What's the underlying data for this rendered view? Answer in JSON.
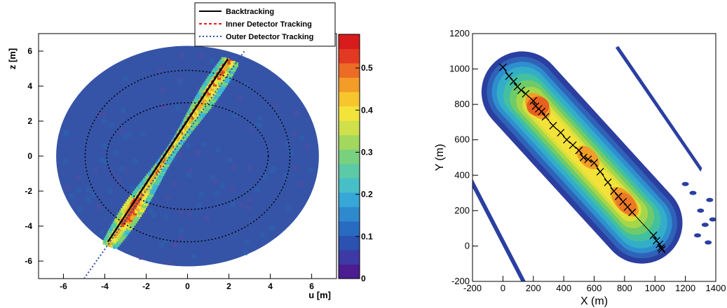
{
  "chart_data": [
    {
      "type": "heatmap",
      "xlabel": "u [m]",
      "ylabel": "z [m]",
      "xlim": [
        -7.2,
        7.2
      ],
      "ylim": [
        -7,
        7
      ],
      "x_ticks": [
        "-6",
        "-4",
        "-2",
        "0",
        "2",
        "4",
        "6"
      ],
      "y_ticks": [
        "-6",
        "-4",
        "-2",
        "0",
        "2",
        "4",
        "6"
      ],
      "colorbar_ticks": [
        "0",
        "0.1",
        "0.2",
        "0.3",
        "0.4",
        "0.5"
      ],
      "colorbar_range": [
        0,
        0.58
      ],
      "legend_position": "top-right",
      "series": [
        {
          "name": "Backtracking",
          "style": "solid",
          "color": "#000000",
          "x": [
            -3.85,
            1.95
          ],
          "y": [
            -4.9,
            5.55
          ]
        },
        {
          "name": "Inner Detector Tracking",
          "style": "dashed",
          "color": "#e31a1c",
          "x": [
            -2.6,
            1.8
          ],
          "y": [
            -2.6,
            5.4
          ]
        },
        {
          "name": "Outer Detector Tracking",
          "style": "dotted",
          "color": "#2c4fa3",
          "x": [
            -5.0,
            2.75
          ],
          "y": [
            -7.0,
            6.0
          ]
        }
      ],
      "reference_ellipses": [
        {
          "rx": 4.95,
          "rz": 4.9
        },
        {
          "rx": 3.9,
          "rz": 3.05
        }
      ]
    },
    {
      "type": "scatter",
      "xlabel": "X (m)",
      "ylabel": "Y (m)",
      "xlim": [
        -200,
        1400
      ],
      "ylim": [
        -200,
        1200
      ],
      "x_ticks": [
        "-200",
        "0",
        "200",
        "400",
        "600",
        "800",
        "1000",
        "1200",
        "1400"
      ],
      "y_ticks": [
        "-200",
        "0",
        "200",
        "400",
        "600",
        "800",
        "1000",
        "1200"
      ],
      "x": [
        0,
        40,
        70,
        95,
        120,
        150,
        200,
        215,
        235,
        255,
        280,
        330,
        380,
        420,
        460,
        500,
        530,
        560,
        600,
        640,
        690,
        730,
        760,
        790,
        820,
        850,
        990,
        1010,
        1030,
        1040,
        1045
      ],
      "y": [
        1010,
        960,
        930,
        900,
        880,
        860,
        820,
        790,
        775,
        760,
        730,
        680,
        640,
        600,
        570,
        540,
        500,
        490,
        470,
        420,
        360,
        310,
        280,
        250,
        220,
        190,
        60,
        30,
        10,
        -10,
        -20
      ]
    }
  ]
}
